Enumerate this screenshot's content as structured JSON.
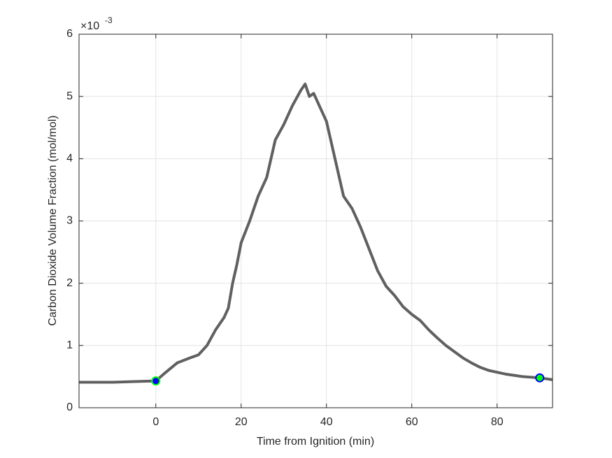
{
  "chart_data": {
    "type": "line",
    "xlabel": "Time from Ignition (min)",
    "ylabel": "Carbon Dioxide Volume Fraction (mol/mol)",
    "y_multiplier": "×10",
    "y_multiplier_exponent": "-3",
    "x": [
      -18,
      -10,
      -5,
      0,
      2,
      5,
      8,
      10,
      12,
      14,
      16,
      17,
      18,
      19,
      20,
      22,
      24,
      26,
      28,
      30,
      32,
      34,
      35,
      36,
      37,
      38,
      40,
      42,
      44,
      46,
      48,
      50,
      52,
      54,
      56,
      58,
      60,
      62,
      64,
      66,
      68,
      70,
      72,
      74,
      76,
      78,
      80,
      82,
      84,
      86,
      88,
      90,
      93
    ],
    "values": [
      0.41,
      0.41,
      0.42,
      0.43,
      0.55,
      0.72,
      0.8,
      0.85,
      1.0,
      1.25,
      1.45,
      1.6,
      2.0,
      2.3,
      2.65,
      3.0,
      3.4,
      3.7,
      4.3,
      4.55,
      4.85,
      5.1,
      5.2,
      5.0,
      5.05,
      4.9,
      4.6,
      4.0,
      3.4,
      3.2,
      2.9,
      2.55,
      2.2,
      1.95,
      1.8,
      1.62,
      1.5,
      1.4,
      1.25,
      1.12,
      1.0,
      0.9,
      0.8,
      0.72,
      0.65,
      0.6,
      0.57,
      0.54,
      0.52,
      0.5,
      0.49,
      0.48,
      0.45
    ],
    "color": "#606060",
    "markers": [
      {
        "x": 0,
        "y": 0.43,
        "fill": "#0000ff",
        "edge": "#00ff00"
      },
      {
        "x": 90,
        "y": 0.48,
        "fill": "#00ff00",
        "edge": "#0000ff"
      }
    ],
    "xlim": [
      -18,
      93
    ],
    "xticks": [
      0,
      20,
      40,
      60,
      80
    ],
    "ylim": [
      0,
      6
    ],
    "yticks": [
      0,
      1,
      2,
      3,
      4,
      5,
      6
    ],
    "grid": true
  }
}
